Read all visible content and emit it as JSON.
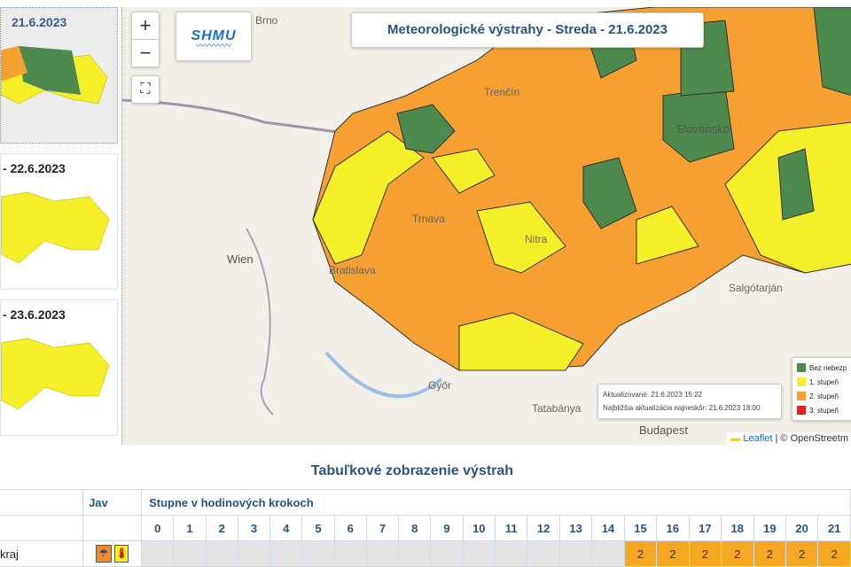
{
  "left_panel": {
    "thumbnails": [
      {
        "date": "21.6.2023",
        "selected": true
      },
      {
        "date": "- 22.6.2023",
        "selected": false
      },
      {
        "date": "- 23.6.2023",
        "selected": false
      }
    ]
  },
  "map": {
    "title": "Meteorologické výstrahy - Streda - 21.6.2023",
    "logo": "SHMU",
    "zoom_in": "+",
    "zoom_out": "−",
    "fullscreen_icon": "fullscreen-icon",
    "labels": [
      "Brno",
      "Trenčín",
      "Trnava",
      "Nitra",
      "Wien",
      "Bratislava",
      "Slovensko",
      "Salgótarján",
      "Győr",
      "Tatabánya",
      "Budapest"
    ],
    "info": {
      "updated": "Aktualizované: 21.6.2023 15:22",
      "next": "Najbližšia aktualizácia najneskôr: 21.6.2023 18:00"
    },
    "legend": [
      {
        "label": "Bez nebezp",
        "color": "#4e8a4e"
      },
      {
        "label": "1. stupeň",
        "color": "#f5ef2a"
      },
      {
        "label": "2. stupeň",
        "color": "#f5a031"
      },
      {
        "label": "3. stupeň",
        "color": "#e8201d"
      }
    ],
    "attribution": {
      "leaflet": "Leaflet",
      "osm": "| © OpenStreetm"
    }
  },
  "table": {
    "title": "Tabuľkové zobrazenie výstrah",
    "col_jav": "Jav",
    "col_steps": "Stupne v hodinových krokoch",
    "hours": [
      "0",
      "1",
      "2",
      "3",
      "4",
      "5",
      "6",
      "7",
      "8",
      "9",
      "10",
      "11",
      "12",
      "13",
      "14",
      "15",
      "16",
      "17",
      "18",
      "19",
      "20",
      "21"
    ],
    "rows": [
      {
        "name": "kraj",
        "icons": [
          "rain-icon",
          "thermometer-icon"
        ],
        "levels": [
          "",
          "",
          "",
          "",
          "",
          "",
          "",
          "",
          "",
          "",
          "",
          "",
          "",
          "",
          "",
          "2",
          "2",
          "2",
          "2",
          "2",
          "2",
          "2"
        ]
      }
    ]
  },
  "colors": {
    "level1": "#f5ef2a",
    "level2": "#f5a031",
    "none": "#4e8a4e"
  }
}
